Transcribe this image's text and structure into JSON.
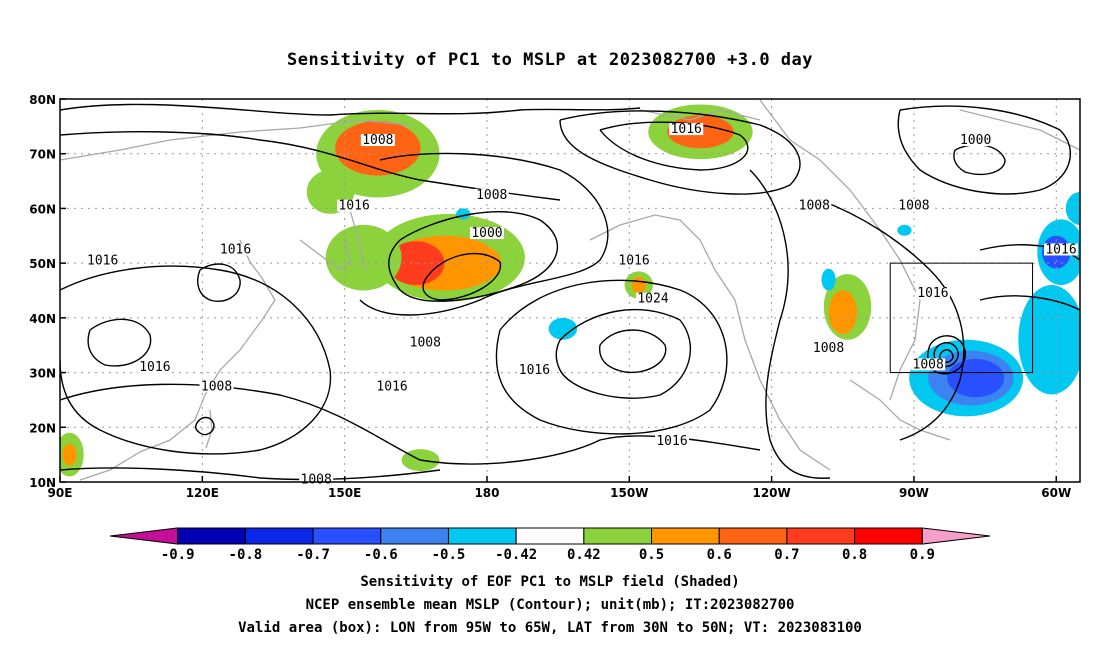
{
  "title": "Sensitivity of PC1 to MSLP at 2023082700 +3.0 day",
  "map": {
    "lon_range": [
      90,
      305
    ],
    "lat_range": [
      10,
      80
    ],
    "x_ticks": [
      {
        "lon": 90,
        "label": "90E"
      },
      {
        "lon": 120,
        "label": "120E"
      },
      {
        "lon": 150,
        "label": "150E"
      },
      {
        "lon": 180,
        "label": "180"
      },
      {
        "lon": 210,
        "label": "150W"
      },
      {
        "lon": 240,
        "label": "120W"
      },
      {
        "lon": 270,
        "label": "90W"
      },
      {
        "lon": 300,
        "label": "60W"
      }
    ],
    "y_ticks": [
      {
        "lat": 10,
        "label": "10N"
      },
      {
        "lat": 20,
        "label": "20N"
      },
      {
        "lat": 30,
        "label": "30N"
      },
      {
        "lat": 40,
        "label": "40N"
      },
      {
        "lat": 50,
        "label": "50N"
      },
      {
        "lat": 60,
        "label": "60N"
      },
      {
        "lat": 70,
        "label": "70N"
      },
      {
        "lat": 80,
        "label": "80N"
      }
    ],
    "valid_box": {
      "lon_min": 265,
      "lon_max": 295,
      "lat_min": 30,
      "lat_max": 50
    },
    "contour_labels": [
      {
        "text": "1008",
        "lon": 157,
        "lat": 72.5
      },
      {
        "text": "1016",
        "lon": 222,
        "lat": 74.5
      },
      {
        "text": "1000",
        "lon": 283,
        "lat": 72.5
      },
      {
        "text": "1008",
        "lon": 181,
        "lat": 62.5
      },
      {
        "text": "1016",
        "lon": 152,
        "lat": 60.5
      },
      {
        "text": "1008",
        "lon": 249,
        "lat": 60.5
      },
      {
        "text": "1008",
        "lon": 270,
        "lat": 60.5
      },
      {
        "text": "1000",
        "lon": 180,
        "lat": 55.5
      },
      {
        "text": "1016",
        "lon": 127,
        "lat": 52.5
      },
      {
        "text": "1016",
        "lon": 99,
        "lat": 50.5
      },
      {
        "text": "1016",
        "lon": 301,
        "lat": 52.5
      },
      {
        "text": "1016",
        "lon": 211,
        "lat": 50.5
      },
      {
        "text": "1024",
        "lon": 215,
        "lat": 43.5
      },
      {
        "text": "1016",
        "lon": 274,
        "lat": 44.5
      },
      {
        "text": "1008",
        "lon": 167,
        "lat": 35.5
      },
      {
        "text": "1008",
        "lon": 252,
        "lat": 34.5
      },
      {
        "text": "1008",
        "lon": 273,
        "lat": 31.5
      },
      {
        "text": "1016",
        "lon": 110,
        "lat": 31.0
      },
      {
        "text": "1016",
        "lon": 190,
        "lat": 30.5
      },
      {
        "text": "1008",
        "lon": 123,
        "lat": 27.5
      },
      {
        "text": "1016",
        "lon": 160,
        "lat": 27.5
      },
      {
        "text": "1016",
        "lon": 219,
        "lat": 17.5
      },
      {
        "text": "1008",
        "lon": 144,
        "lat": 10.5
      }
    ],
    "shading": [
      {
        "lon": 157,
        "lat": 70,
        "rx": 13,
        "ry": 8,
        "level": 0.5
      },
      {
        "lon": 157,
        "lat": 71,
        "rx": 9,
        "ry": 5,
        "level": 0.7
      },
      {
        "lon": 147,
        "lat": 63,
        "rx": 5,
        "ry": 4,
        "level": 0.5
      },
      {
        "lon": 172,
        "lat": 51,
        "rx": 16,
        "ry": 8,
        "level": 0.5
      },
      {
        "lon": 171,
        "lat": 50,
        "rx": 12,
        "ry": 5,
        "level": 0.6
      },
      {
        "lon": 165,
        "lat": 50,
        "rx": 6,
        "ry": 4,
        "level": 0.8
      },
      {
        "lon": 154,
        "lat": 51,
        "rx": 8,
        "ry": 6,
        "level": 0.5
      },
      {
        "lon": 225,
        "lat": 74,
        "rx": 11,
        "ry": 5,
        "level": 0.5
      },
      {
        "lon": 225,
        "lat": 74,
        "rx": 7,
        "ry": 3,
        "level": 0.7
      },
      {
        "lon": 212,
        "lat": 46,
        "rx": 3,
        "ry": 2.5,
        "level": 0.5
      },
      {
        "lon": 212,
        "lat": 46,
        "rx": 1.5,
        "ry": 1.5,
        "level": 0.6
      },
      {
        "lon": 256,
        "lat": 42,
        "rx": 5,
        "ry": 6,
        "level": 0.5
      },
      {
        "lon": 255,
        "lat": 41,
        "rx": 3,
        "ry": 4,
        "level": 0.6
      },
      {
        "lon": 92,
        "lat": 15,
        "rx": 3,
        "ry": 4,
        "level": 0.5
      },
      {
        "lon": 92,
        "lat": 15,
        "rx": 1.5,
        "ry": 2,
        "level": 0.6
      },
      {
        "lon": 166,
        "lat": 14,
        "rx": 4,
        "ry": 2,
        "level": 0.5
      },
      {
        "lon": 281,
        "lat": 29,
        "rx": 12,
        "ry": 7,
        "level": -0.5
      },
      {
        "lon": 282,
        "lat": 29,
        "rx": 9,
        "ry": 5,
        "level": -0.6
      },
      {
        "lon": 283,
        "lat": 29,
        "rx": 6,
        "ry": 3.5,
        "level": -0.7
      },
      {
        "lon": 299,
        "lat": 36,
        "rx": 7,
        "ry": 10,
        "level": -0.5
      },
      {
        "lon": 301,
        "lat": 52,
        "rx": 5,
        "ry": 6,
        "level": -0.5
      },
      {
        "lon": 300,
        "lat": 52,
        "rx": 3,
        "ry": 3,
        "level": -0.7
      },
      {
        "lon": 305,
        "lat": 60,
        "rx": 3,
        "ry": 3,
        "level": -0.5
      },
      {
        "lon": 196,
        "lat": 38,
        "rx": 3,
        "ry": 2,
        "level": -0.5
      },
      {
        "lon": 252,
        "lat": 47,
        "rx": 1.5,
        "ry": 2,
        "level": -0.5
      },
      {
        "lon": 268,
        "lat": 56,
        "rx": 1.5,
        "ry": 1,
        "level": -0.5
      },
      {
        "lon": 175,
        "lat": 59,
        "rx": 1.5,
        "ry": 1,
        "level": -0.5
      }
    ]
  },
  "colorbar": {
    "labels": [
      "-0.9",
      "-0.8",
      "-0.7",
      "-0.6",
      "-0.5",
      "-0.42",
      "0.42",
      "0.5",
      "0.6",
      "0.7",
      "0.8",
      "0.9"
    ],
    "colors": [
      "#c20f96",
      "#0000b4",
      "#0a28e6",
      "#2850ff",
      "#3c82f0",
      "#00c8f0",
      "#ffffff",
      "#8cd23c",
      "#ff9600",
      "#ff6414",
      "#ff3c1e",
      "#ff0000",
      "#f5a0c8"
    ]
  },
  "captions": {
    "line1": "Sensitivity of EOF PC1 to MSLP field (Shaded)",
    "line2": "NCEP ensemble mean MSLP (Contour); unit(mb); IT:2023082700",
    "line3": "Valid area (box): LON from 95W to 65W, LAT from 30N to 50N; VT: 2023083100"
  }
}
